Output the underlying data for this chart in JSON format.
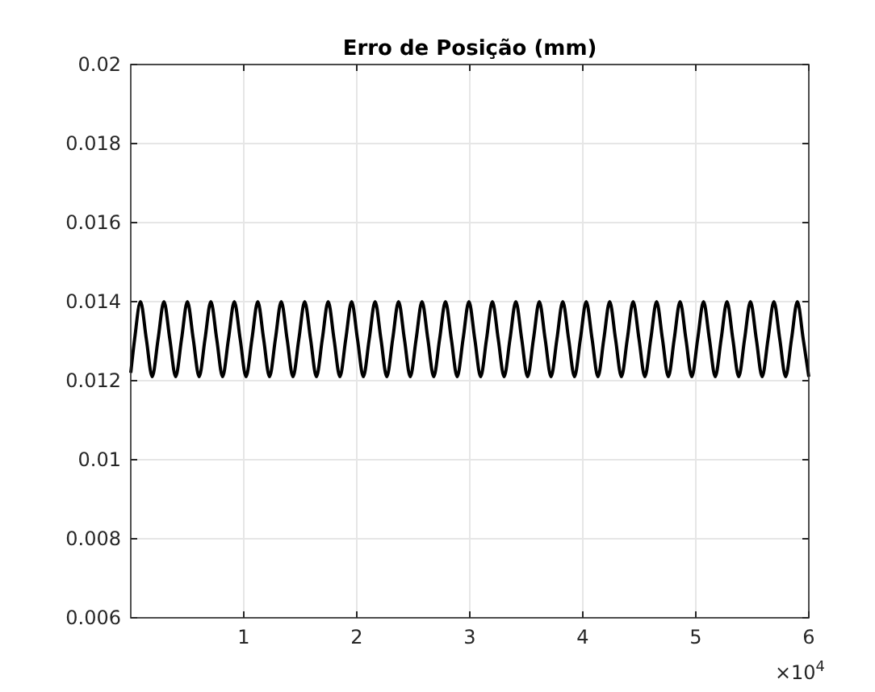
{
  "chart_data": {
    "type": "line",
    "title": "Erro de Posição (mm)",
    "x": [
      0,
      0.0341,
      0.086,
      0.1379,
      0.1898,
      0.2417,
      0.2936,
      0.3455,
      0.3974,
      0.4493,
      0.5012,
      0.5531,
      0.605,
      0.6569,
      0.7088,
      0.7607,
      0.8126,
      0.8645,
      0.9164,
      0.9683,
      1.0202,
      1.0721,
      1.124,
      1.1759,
      1.2278,
      1.2797,
      1.3316,
      1.3835,
      1.4354,
      1.4873,
      1.5392,
      1.5911,
      1.643,
      1.6949,
      1.7468,
      1.7987,
      1.8506,
      1.9025,
      1.9544,
      2.0063,
      2.0582,
      2.1101,
      2.162,
      2.2139,
      2.2658,
      2.3177,
      2.3696,
      2.4215,
      2.4734,
      2.5253,
      2.5772,
      2.6291,
      2.681,
      2.7329,
      2.7848,
      2.8367,
      2.8886,
      2.9405,
      2.9924,
      3.0443,
      3.0962,
      3.1481,
      3.2,
      3.2519,
      3.3038,
      3.3557,
      3.4076,
      3.4595,
      3.5114,
      3.5633,
      3.6152,
      3.6671,
      3.719,
      3.7709,
      3.8228,
      3.8747,
      3.9266,
      3.9785,
      4.0304,
      4.0823,
      4.1342,
      4.1861,
      4.238,
      4.2899,
      4.3418,
      4.3937,
      4.4456,
      4.4975,
      4.5494,
      4.6013,
      4.6532,
      4.7051,
      4.757,
      4.8089,
      4.8608,
      4.9127,
      4.9646,
      5.0165,
      5.0684,
      5.1203,
      5.1722,
      5.2241,
      5.276,
      5.3279,
      5.3798,
      5.4317,
      5.4836,
      5.5355,
      5.5874,
      5.6393,
      5.6912,
      5.7431,
      5.795,
      5.8469,
      5.8988,
      5.9507,
      6
    ],
    "series": [
      {
        "color": "#000000",
        "values": [
          0.0122,
          0.01305,
          0.014,
          0.01305,
          0.0121,
          0.01305,
          0.014,
          0.01305,
          0.0121,
          0.01305,
          0.014,
          0.01305,
          0.0121,
          0.01305,
          0.014,
          0.01305,
          0.0121,
          0.01305,
          0.014,
          0.01305,
          0.0121,
          0.01305,
          0.014,
          0.01305,
          0.0121,
          0.01305,
          0.014,
          0.01305,
          0.0121,
          0.01305,
          0.014,
          0.01305,
          0.0121,
          0.01305,
          0.014,
          0.01305,
          0.0121,
          0.01305,
          0.014,
          0.01305,
          0.0121,
          0.01305,
          0.014,
          0.01305,
          0.0121,
          0.01305,
          0.014,
          0.01305,
          0.0121,
          0.01305,
          0.014,
          0.01305,
          0.0121,
          0.01305,
          0.014,
          0.01305,
          0.0121,
          0.01305,
          0.014,
          0.01305,
          0.0121,
          0.01305,
          0.014,
          0.01305,
          0.0121,
          0.01305,
          0.014,
          0.01305,
          0.0121,
          0.01305,
          0.014,
          0.01305,
          0.0121,
          0.01305,
          0.014,
          0.01305,
          0.0121,
          0.01305,
          0.014,
          0.01305,
          0.0121,
          0.01305,
          0.014,
          0.01305,
          0.0121,
          0.01305,
          0.014,
          0.01305,
          0.0121,
          0.01305,
          0.014,
          0.01305,
          0.0121,
          0.01305,
          0.014,
          0.01305,
          0.0121,
          0.01305,
          0.014,
          0.01305,
          0.0121,
          0.01305,
          0.014,
          0.01305,
          0.0121,
          0.01305,
          0.014,
          0.01305,
          0.0121,
          0.01305,
          0.014,
          0.01305,
          0.0121,
          0.01305,
          0.014,
          0.01305,
          0.0121
        ]
      }
    ],
    "xlim": [
      0,
      6
    ],
    "xticks": [
      1,
      2,
      3,
      4,
      5,
      6
    ],
    "ylim": [
      0.006,
      0.02
    ],
    "yticks": [
      0.006,
      0.008,
      0.01,
      0.012,
      0.014,
      0.016,
      0.018,
      0.02
    ],
    "annotations": [
      "×10$^{4}$"
    ],
    "grid": true,
    "marker": "none",
    "line_style": "solid"
  }
}
